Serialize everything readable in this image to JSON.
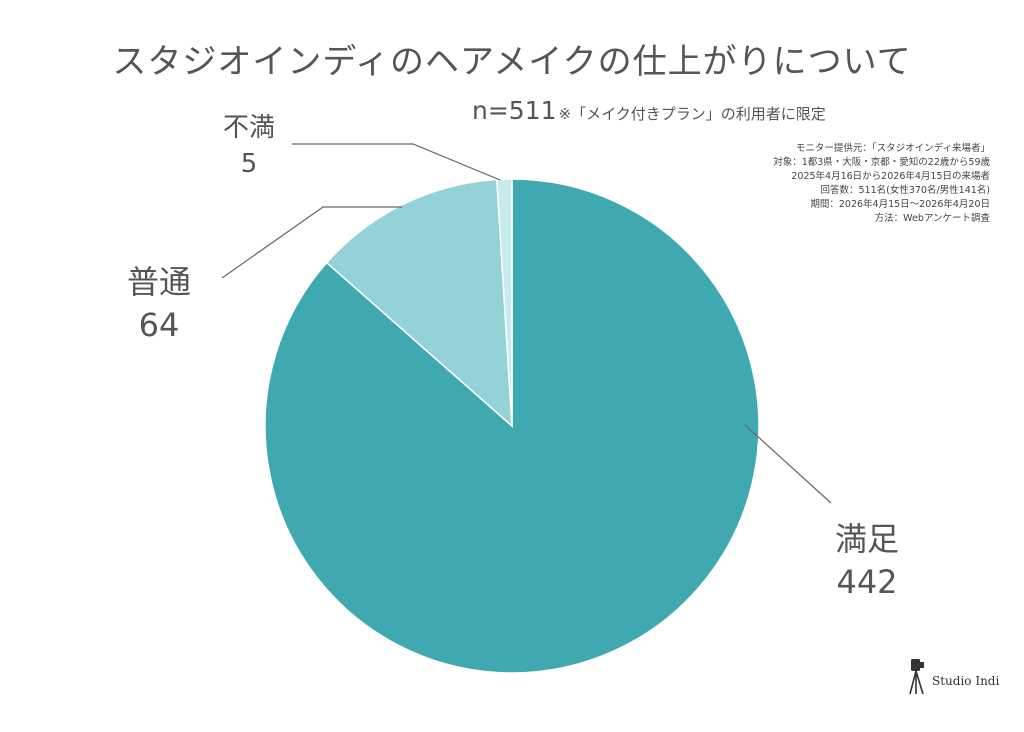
{
  "title": "スタジオインディのヘアメイクの仕上がりについて",
  "subtitle": {
    "n": "n=511",
    "note": "※「メイク付きプラン」の利用者に限定"
  },
  "info_lines": [
    "モニター提供元：「スタジオインディ来場者」",
    "対象：1都3県・大阪・京都・愛知の22歳から59歳",
    "2025年4月16日から2026年4月15日の来場者",
    "回答数：511名(女性370名/男性141名)",
    "期間：2026年4月15日〜2026年4月20日",
    "方法：Webアンケート調査"
  ],
  "brand": {
    "name": "Studio Indi",
    "icon": "camera-tripod-icon"
  },
  "colors": {
    "satisfied": "#3fa8b0",
    "normal": "#93d3d8",
    "dissatisfied": "#c8ecee",
    "leader": "#666666",
    "text": "#555555"
  },
  "chart_data": {
    "type": "pie",
    "title": "スタジオインディのヘアメイクの仕上がりについて",
    "start_angle_deg": 0,
    "direction": "clockwise",
    "categories": [
      "満足",
      "普通",
      "不満"
    ],
    "values": [
      442,
      64,
      5
    ],
    "labels": [
      {
        "name": "満足",
        "value": "442"
      },
      {
        "name": "普通",
        "value": "64"
      },
      {
        "name": "不満",
        "value": "5"
      }
    ],
    "legend": "none"
  }
}
